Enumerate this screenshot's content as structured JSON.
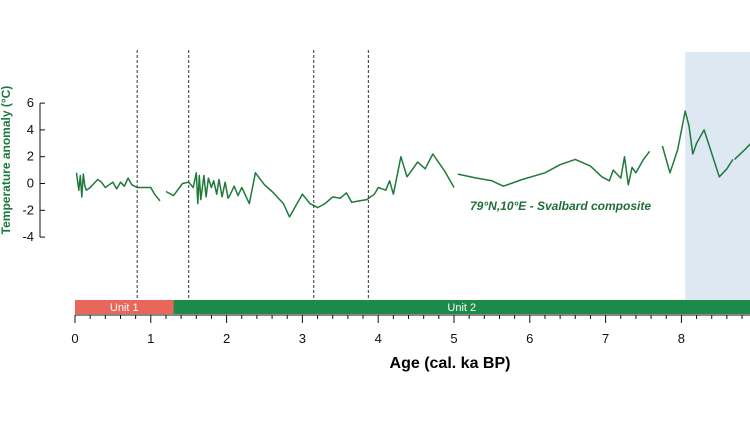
{
  "chart_data": {
    "type": "line",
    "title": "",
    "xlabel": "Age (cal. ka BP)",
    "ylabel": "Temperature anomaly (°C)",
    "xlim": [
      0,
      9
    ],
    "ylim": [
      -4,
      6
    ],
    "x_ticks": [
      0,
      1,
      2,
      3,
      4,
      5,
      6,
      7,
      8
    ],
    "y_ticks": [
      6,
      4,
      2,
      0,
      -2,
      -4
    ],
    "line_color": "#1f7a3a",
    "annotation": "79°N,10°E - Svalbard composite",
    "vertical_dashed_lines": [
      0.82,
      1.5,
      3.15,
      3.87
    ],
    "shaded_region": {
      "x_start": 8.05,
      "x_end": 9,
      "color": "#dde8f3"
    },
    "units": [
      {
        "label": "Unit 1",
        "x_start": 0,
        "x_end": 1.3,
        "color": "#e8675a"
      },
      {
        "label": "Unit 2",
        "x_start": 1.3,
        "x_end": 9,
        "color": "#1e8a49"
      }
    ],
    "series": [
      {
        "segments": [
          {
            "x": [
              0.02,
              0.05,
              0.07,
              0.09,
              0.11,
              0.13,
              0.15,
              0.2,
              0.3,
              0.35,
              0.4,
              0.45,
              0.5,
              0.55,
              0.6,
              0.65,
              0.7,
              0.75,
              0.82,
              0.88,
              1.0,
              1.05,
              1.12
            ],
            "y": [
              0.8,
              -0.5,
              0.6,
              -1.0,
              0.7,
              -0.2,
              -0.5,
              -0.3,
              0.3,
              0.1,
              -0.3,
              -0.1,
              0.1,
              -0.4,
              0.1,
              -0.2,
              0.4,
              -0.1,
              -0.3,
              -0.3,
              -0.3,
              -0.8,
              -1.3
            ]
          },
          {
            "x": [
              1.2,
              1.3,
              1.42,
              1.5,
              1.56,
              1.6,
              1.62,
              1.64,
              1.66,
              1.7,
              1.73,
              1.76,
              1.8,
              1.83,
              1.87,
              1.9,
              1.94,
              1.98,
              2.02,
              2.05,
              2.1,
              2.15,
              2.2,
              2.3,
              2.38,
              2.5,
              2.6,
              2.7,
              2.75,
              2.83,
              2.92,
              3.0,
              3.1,
              3.2,
              3.3,
              3.4,
              3.5,
              3.58,
              3.65,
              3.75,
              3.85,
              3.95,
              4.0,
              4.1,
              4.15,
              4.2,
              4.3,
              4.38,
              4.42,
              4.52,
              4.62,
              4.72,
              4.88,
              4.92,
              5.0
            ],
            "y": [
              -0.6,
              -0.9,
              0.0,
              0.1,
              -0.3,
              0.8,
              -1.5,
              0.6,
              -1.2,
              0.6,
              -1.0,
              0.4,
              -0.3,
              0.2,
              -0.8,
              0.3,
              -1.0,
              0.1,
              -1.1,
              -0.8,
              -0.2,
              -0.9,
              -0.3,
              -1.5,
              0.8,
              -0.1,
              -0.6,
              -1.2,
              -1.5,
              -2.5,
              -1.6,
              -0.8,
              -1.5,
              -1.8,
              -1.5,
              -1.0,
              -1.1,
              -0.7,
              -1.4,
              -1.3,
              -1.2,
              -0.8,
              -0.3,
              -0.5,
              0.2,
              -0.8,
              2.0,
              0.5,
              0.8,
              1.6,
              1.1,
              2.2,
              0.9,
              0.5,
              -0.3
            ]
          },
          {
            "x": [
              5.05,
              5.3,
              5.5,
              5.65,
              5.9,
              6.2,
              6.4,
              6.6,
              6.8,
              6.95,
              7.05,
              7.1,
              7.2,
              7.25,
              7.3,
              7.35,
              7.4,
              7.5,
              7.58
            ],
            "y": [
              0.7,
              0.4,
              0.2,
              -0.2,
              0.3,
              0.8,
              1.4,
              1.8,
              1.3,
              0.5,
              0.2,
              1.0,
              0.4,
              2.0,
              -0.1,
              1.2,
              0.8,
              1.8,
              2.4
            ]
          },
          {
            "x": [
              7.75,
              7.8,
              7.85,
              7.95,
              8.05,
              8.1,
              8.15,
              8.2,
              8.3,
              8.5,
              8.6,
              8.68
            ],
            "y": [
              2.8,
              1.8,
              0.8,
              2.5,
              5.4,
              4.3,
              2.2,
              3.0,
              4.0,
              0.5,
              1.1,
              1.8
            ]
          },
          {
            "x": [
              8.7,
              8.85,
              8.95
            ],
            "y": [
              1.8,
              2.6,
              3.2
            ]
          }
        ]
      }
    ]
  }
}
